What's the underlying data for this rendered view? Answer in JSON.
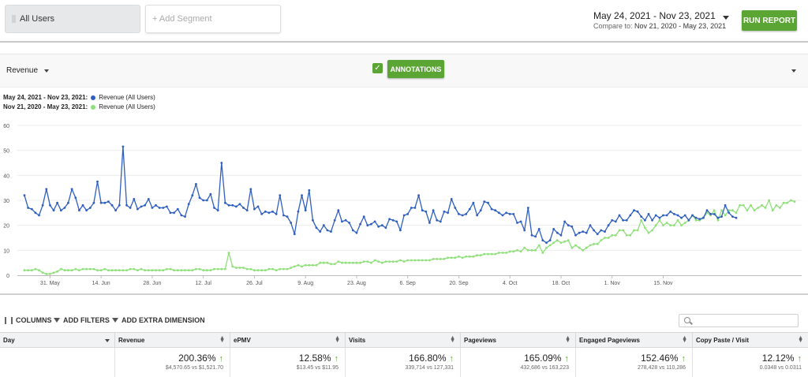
{
  "segments": {
    "all_users": "All Users",
    "add_segment": "+ Add Segment"
  },
  "date": {
    "range": "May 24, 2021 - Nov 23, 2021",
    "compare_label": "Compare to:",
    "compare_range": "Nov 21, 2020 - May 23, 2021"
  },
  "run_report": "RUN REPORT",
  "chart_header": {
    "metric": "Revenue",
    "annotations_button": "ANNOTATIONS",
    "annotations_checked": true
  },
  "legend": [
    {
      "period": "May 24, 2021 - Nov 23, 2021:",
      "name": "Revenue (All Users)",
      "color": "#2f5fbf"
    },
    {
      "period": "Nov 21, 2020 - May 23, 2021:",
      "name": "Revenue (All Users)",
      "color": "#8fe07a"
    }
  ],
  "chart_data": {
    "type": "line",
    "ylim": [
      0,
      60
    ],
    "yticks": [
      0,
      10,
      20,
      30,
      40,
      50,
      60
    ],
    "x_start": "2021-05-24",
    "xticks": [
      {
        "label": "31. May",
        "day": 7
      },
      {
        "label": "14. Jun",
        "day": 21
      },
      {
        "label": "28. Jun",
        "day": 35
      },
      {
        "label": "12. Jul",
        "day": 49
      },
      {
        "label": "26. Jul",
        "day": 63
      },
      {
        "label": "9. Aug",
        "day": 77
      },
      {
        "label": "23. Aug",
        "day": 91
      },
      {
        "label": "6. Sep",
        "day": 105
      },
      {
        "label": "20. Sep",
        "day": 119
      },
      {
        "label": "4. Oct",
        "day": 133
      },
      {
        "label": "18. Oct",
        "day": 147
      },
      {
        "label": "1. Nov",
        "day": 161
      },
      {
        "label": "15. Nov",
        "day": 175
      }
    ],
    "series": [
      {
        "name": "Revenue (All Users)",
        "color": "#2f5fbf",
        "values": [
          32,
          27,
          26.5,
          25,
          24,
          28,
          34.5,
          28,
          26,
          29,
          26,
          27,
          29,
          34.5,
          31,
          26,
          28,
          26,
          27,
          29,
          37.5,
          29,
          29,
          29.5,
          28,
          26,
          28,
          51.5,
          28,
          27,
          30.5,
          26.5,
          27.5,
          28,
          30.5,
          27,
          28,
          27,
          27,
          27.5,
          25,
          25,
          26.5,
          24,
          23.5,
          28.5,
          32,
          36.5,
          31,
          30,
          30,
          32.5,
          27,
          26,
          45,
          29,
          28,
          28,
          27.5,
          28.5,
          27,
          26,
          34.5,
          26.5,
          27.5,
          24.5,
          25.5,
          25,
          25.5,
          24.5,
          32,
          24,
          23.5,
          21,
          16.5,
          25.5,
          32,
          26,
          34,
          22,
          19,
          17.5,
          20,
          18,
          17.5,
          22,
          26,
          21.5,
          22,
          21,
          18,
          17,
          20.5,
          23.5,
          20,
          20.5,
          21.5,
          19.5,
          20,
          19,
          22.5,
          22,
          21.5,
          18,
          24,
          24.5,
          27,
          27,
          32,
          26,
          25.5,
          21,
          26,
          22,
          21.5,
          25.5,
          25,
          30.5,
          27,
          24.5,
          24,
          24.5,
          26.5,
          29,
          24,
          26,
          29.5,
          29,
          26.5,
          26,
          25,
          24,
          25,
          24.5,
          24.5,
          21,
          21.5,
          18,
          27,
          16,
          15.5,
          18.5,
          14,
          13,
          14,
          18.5,
          17,
          16,
          21.5,
          20,
          19.5,
          16,
          17,
          17.5,
          17,
          20,
          18,
          16.5,
          18,
          17.5,
          20,
          22,
          21.5,
          24,
          22,
          22,
          24,
          26,
          25.5,
          23.5,
          22,
          24.5,
          22,
          24,
          23,
          24,
          24,
          25.5,
          24.5,
          24,
          23,
          24,
          22,
          24,
          23,
          22.5,
          23,
          26,
          24.5,
          24.5,
          23,
          23.5,
          28,
          25,
          23.5,
          23
        ]
      },
      {
        "name": "Revenue (All Users)",
        "color": "#8fe07a",
        "values": [
          2,
          2,
          2,
          2.5,
          2,
          1,
          0.5,
          0.5,
          1,
          1.5,
          2.5,
          2,
          2,
          2,
          2.5,
          2,
          2.5,
          2.5,
          2.5,
          2.5,
          2,
          2,
          2.5,
          2,
          2,
          2,
          2,
          2,
          2,
          2.5,
          2.5,
          2,
          2.5,
          2,
          2,
          2,
          2,
          2,
          2,
          2.5,
          2.5,
          2,
          2,
          2,
          2,
          2,
          2,
          2.5,
          2.5,
          2,
          2,
          2,
          2.5,
          2.5,
          2.5,
          2.5,
          9,
          3.5,
          3,
          3,
          3,
          2.5,
          2.5,
          2,
          2,
          2,
          2,
          2.5,
          2.5,
          2,
          2.5,
          2.5,
          2.5,
          3,
          3.5,
          4,
          3.5,
          4,
          4,
          4,
          4,
          5,
          5,
          5,
          4.5,
          4.5,
          5.5,
          5,
          5,
          5,
          5,
          5,
          5,
          5.5,
          5.5,
          5,
          6,
          5.5,
          5,
          5.5,
          5.5,
          5.5,
          5.5,
          6,
          5.5,
          6,
          6,
          6,
          6,
          6,
          6,
          6,
          6.5,
          6.5,
          6.5,
          6.5,
          7,
          7,
          7,
          7.5,
          7,
          7.5,
          7.5,
          7.5,
          8,
          8,
          8.5,
          8.5,
          8.5,
          8.5,
          9,
          9,
          9,
          9.5,
          9.5,
          10,
          9.5,
          11,
          10,
          10,
          10,
          12,
          9,
          11,
          12,
          13,
          14,
          13,
          13.5,
          14,
          11,
          12,
          11,
          10,
          11,
          12,
          12.5,
          12.5,
          14,
          15,
          15,
          16,
          16,
          18,
          18,
          16,
          16,
          18,
          18,
          22,
          19,
          17,
          18,
          20,
          22,
          20,
          21,
          20,
          20,
          22,
          20,
          21,
          22,
          24,
          22,
          22,
          23,
          25,
          24,
          26,
          22,
          26,
          24,
          26,
          26,
          25,
          28,
          28,
          26,
          28,
          26,
          27,
          28,
          27,
          30,
          26,
          28,
          27,
          29,
          29,
          30,
          29.5
        ]
      }
    ]
  },
  "toolbar": {
    "columns": "COLUMNS",
    "add_filters": "ADD FILTERS",
    "add_extra_dimension": "ADD EXTRA DIMENSION"
  },
  "table": {
    "headers": [
      "Day",
      "Revenue",
      "ePMV",
      "Visits",
      "Pageviews",
      "Engaged Pageviews",
      "Copy Paste / Visit"
    ],
    "summary": [
      {
        "pct": "200.36%",
        "cmp": "$4,570.65 vs $1,521.70"
      },
      {
        "pct": "12.58%",
        "cmp": "$13.45 vs $11.95"
      },
      {
        "pct": "166.80%",
        "cmp": "339,714 vs 127,331"
      },
      {
        "pct": "165.09%",
        "cmp": "432,686 vs 163,223"
      },
      {
        "pct": "152.46%",
        "cmp": "278,428 vs 110,286"
      },
      {
        "pct": "12.12%",
        "cmp": "0.0348 vs 0.0311"
      }
    ]
  }
}
